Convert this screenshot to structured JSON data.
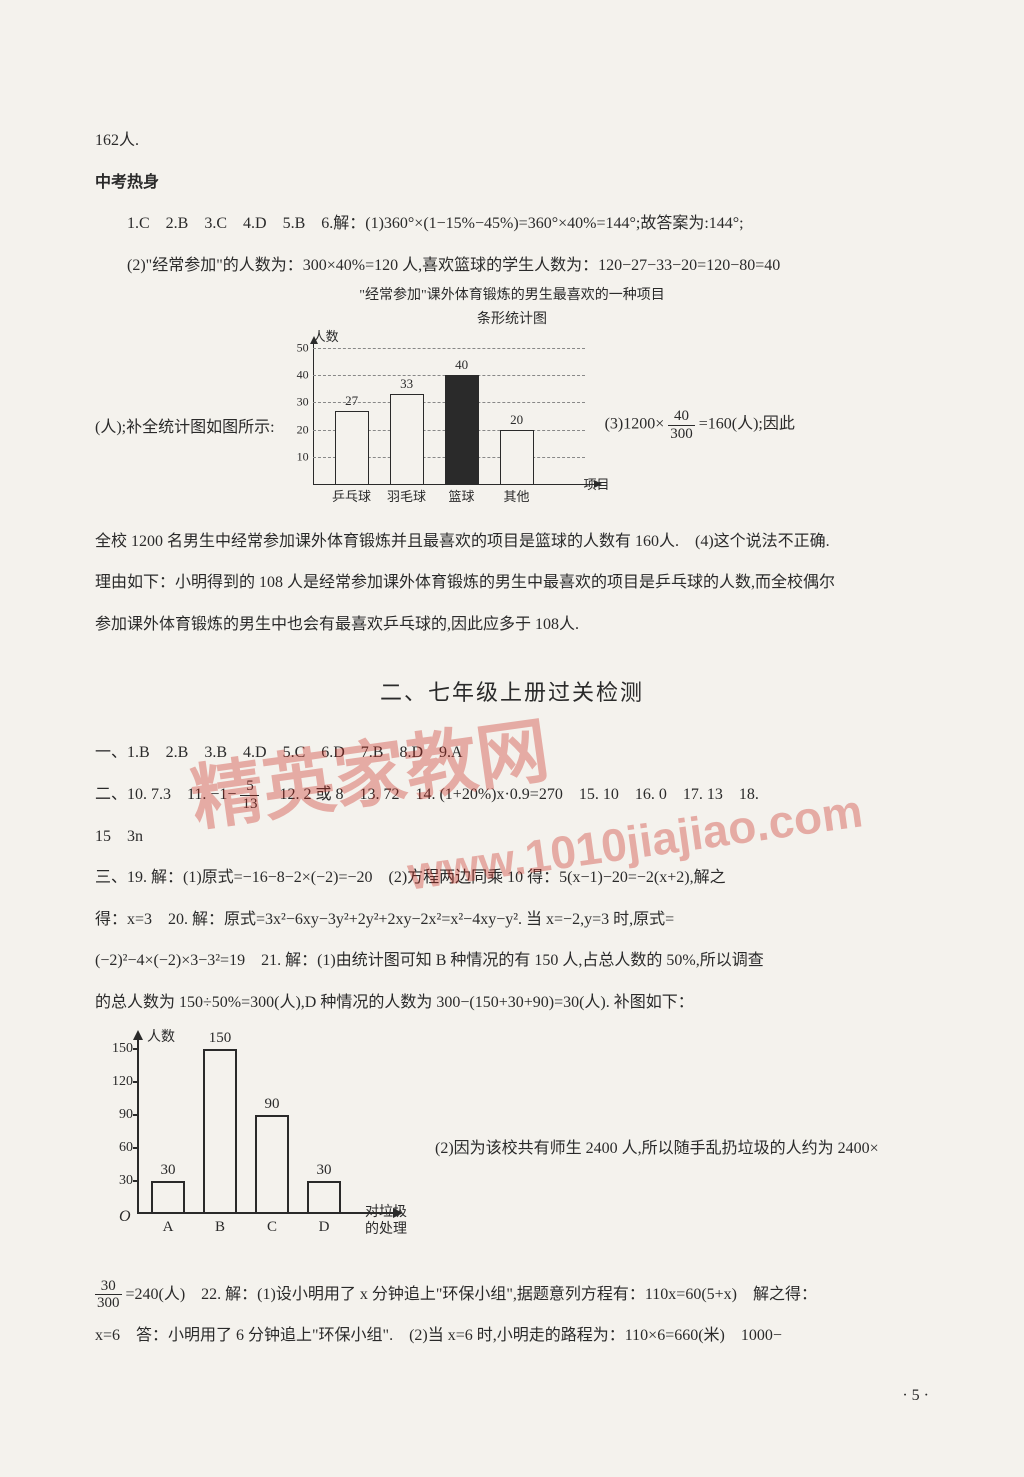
{
  "top": {
    "line1": "162人.",
    "heading": "中考热身",
    "l2": "1.C　2.B　3.C　4.D　5.B　6.解：(1)360°×(1−15%−45%)=360°×40%=144°;故答案为:144°;",
    "l3": "(2)\"经常参加\"的人数为：300×40%=120 人,喜欢篮球的学生人数为：120−27−33−20=120−80=40",
    "left_of_chart": "(人);补全统计图如图所示:",
    "right_of_chart_a": "(3)1200×",
    "right_of_chart_frac_num": "40",
    "right_of_chart_frac_den": "300",
    "right_of_chart_b": "=160(人);因此",
    "l4": "全校 1200 名男生中经常参加课外体育锻炼并且最喜欢的项目是篮球的人数有 160人.　(4)这个说法不正确.",
    "l5": "理由如下：小明得到的 108 人是经常参加课外体育锻炼的男生中最喜欢的项目是乒乓球的人数,而全校偶尔",
    "l6": "参加课外体育锻炼的男生中也会有最喜欢乒乓球的,因此应多于 108人."
  },
  "chart1": {
    "title1": "\"经常参加\"课外体育锻炼的男生最喜欢的一种项目",
    "title2": "条形统计图",
    "ylabel": "人数",
    "xlabel": "项目",
    "ymax": 50,
    "ytick_step": 10,
    "yticks": [
      10,
      20,
      30,
      40,
      50
    ],
    "categories": [
      "乒乓球",
      "羽毛球",
      "篮球",
      "其他"
    ],
    "values": [
      27,
      33,
      40,
      20
    ],
    "solid_index": 2,
    "bar_color": "#f4f2ed",
    "solid_color": "#2a2a2a",
    "border_color": "#2a2a2a",
    "grid_color": "#888888"
  },
  "section2": {
    "title": "二、七年级上册过关检测",
    "p1": "一、1.B　2.B　3.B　4.D　5.C　6.D　7.B　8.D　9.A",
    "p2a": "二、10. 7.3　11. −1−",
    "p2_frac_num": "5",
    "p2_frac_den": "13",
    "p2b": "　12. 2 或 8　13. 72　14. (1+20%)x·0.9=270　15. 10　16. 0　17. 13　18.",
    "p3": "15　3n",
    "p4": "三、19. 解：(1)原式=−16−8−2×(−2)=−20　(2)方程两边同乘 10 得：5(x−1)−20=−2(x+2),解之",
    "p5": "得：x=3　20. 解：原式=3x²−6xy−3y²+2y²+2xy−2x²=x²−4xy−y². 当 x=−2,y=3 时,原式=",
    "p6": "(−2)²−4×(−2)×3−3²=19　21. 解：(1)由统计图可知 B 种情况的有 150 人,占总人数的 50%,所以调查",
    "p7": "的总人数为 150÷50%=300(人),D 种情况的人数为 300−(150+30+90)=30(人). 补图如下："
  },
  "chart2": {
    "ylabel": "人数",
    "xlabel": "对垃圾\n的处理",
    "origin": "O",
    "ymax": 150,
    "ytick_step": 30,
    "yticks": [
      30,
      60,
      90,
      120,
      150
    ],
    "categories": [
      "A",
      "B",
      "C",
      "D"
    ],
    "values": [
      30,
      150,
      90,
      30
    ],
    "show_values": [
      30,
      150,
      90,
      30
    ],
    "bar_color": "#f4f2ed",
    "border_color": "#2a2a2a"
  },
  "after_chart2": "(2)因为该校共有师生 2400 人,所以随手乱扔垃圾的人约为 2400×",
  "bottom": {
    "frac_num": "30",
    "frac_den": "300",
    "b1": "=240(人)　22. 解：(1)设小明用了 x 分钟追上\"环保小组\",据题意列方程有：110x=60(5+x)　解之得：",
    "b2": "x=6　答：小明用了 6 分钟追上\"环保小组\".　(2)当 x=6 时,小明走的路程为：110×6=660(米)　1000−"
  },
  "pagenum": "· 5 ·",
  "watermark": {
    "cn": "精英家教网",
    "en": "www.1010jiajiao.com"
  }
}
